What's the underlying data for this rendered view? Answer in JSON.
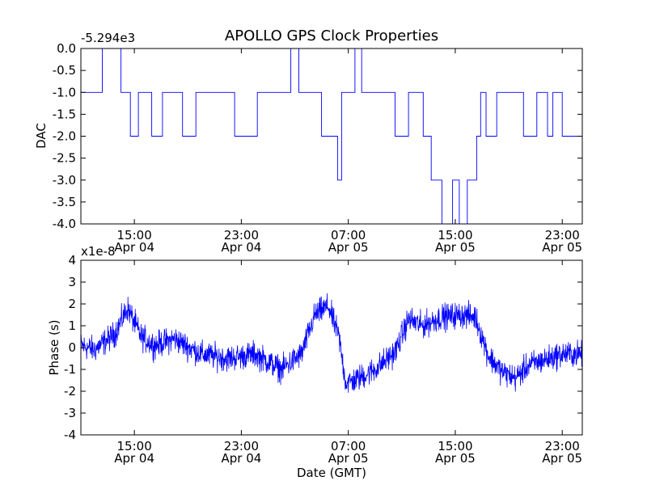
{
  "figure": {
    "title": "APOLLO GPS Clock Properties",
    "xlabel": "Date (GMT)"
  },
  "colors": {
    "line": "#0000ff",
    "axes": "#000000",
    "background": "#ffffff"
  },
  "chart_data": [
    {
      "type": "line",
      "title": "APOLLO GPS Clock Properties",
      "ylabel": "DAC",
      "offset_label": "-5.294e3",
      "xlabel": "",
      "grid": false,
      "xlim": [
        "Apr 04 11:00",
        "Apr 06 00:30"
      ],
      "ylim": [
        -4.0,
        0.0
      ],
      "yticks": [
        0.0,
        -0.5,
        -1.0,
        -1.5,
        -2.0,
        -2.5,
        -3.0,
        -3.5,
        -4.0
      ],
      "ytick_labels": [
        "0.0",
        "-0.5",
        "-1.0",
        "-1.5",
        "-2.0",
        "-2.5",
        "-3.0",
        "-3.5",
        "-4.0"
      ],
      "xticks": [
        {
          "time": "15:00",
          "date": "Apr 04"
        },
        {
          "time": "23:00",
          "date": "Apr 04"
        },
        {
          "time": "07:00",
          "date": "Apr 05"
        },
        {
          "time": "15:00",
          "date": "Apr 05"
        },
        {
          "time": "23:00",
          "date": "Apr 05"
        }
      ],
      "series": [
        {
          "hours": [
            11.8,
            12.6,
            14.0,
            14.7,
            15.3,
            16.3,
            17.1,
            18.6,
            19.6,
            22.5,
            24.2,
            26.2,
            26.7,
            27.3,
            29.0,
            30.2,
            30.5,
            31.5,
            32.0,
            34.5,
            35.5,
            36.6,
            37.2,
            38.0,
            38.8,
            39.3,
            39.9,
            40.6,
            40.9,
            41.3,
            42.1,
            44.1,
            45.1,
            45.9,
            46.3,
            47.0
          ],
          "values": [
            -1,
            0,
            -1,
            -2,
            -1,
            -2,
            -1,
            -2,
            -1,
            -2,
            -1,
            -1,
            0,
            -1,
            -2,
            -3,
            -1,
            0,
            -1,
            -2,
            -1,
            -2,
            -3,
            -4,
            -3,
            -4,
            -3,
            -2,
            -1,
            -2,
            -1,
            -2,
            -1,
            -2,
            -1,
            -2
          ]
        }
      ]
    },
    {
      "type": "line",
      "ylabel": "Phase (s)",
      "xlabel": "Date (GMT)",
      "offset_label": "x1e-8",
      "grid": false,
      "xlim": [
        "Apr 04 11:00",
        "Apr 06 00:30"
      ],
      "ylim": [
        -4,
        4
      ],
      "yticks": [
        4,
        3,
        2,
        1,
        0,
        -1,
        -2,
        -3,
        -4
      ],
      "ytick_labels": [
        "4",
        "3",
        "2",
        "1",
        "0",
        "-1",
        "-2",
        "-3",
        "-4"
      ],
      "xticks": [
        {
          "time": "15:00",
          "date": "Apr 04"
        },
        {
          "time": "23:00",
          "date": "Apr 04"
        },
        {
          "time": "07:00",
          "date": "Apr 05"
        },
        {
          "time": "15:00",
          "date": "Apr 05"
        },
        {
          "time": "23:00",
          "date": "Apr 05"
        }
      ],
      "series": [
        {
          "hours": [
            11.0,
            12.0,
            13.5,
            14.5,
            15.5,
            16.5,
            18.0,
            20.0,
            22.0,
            24.0,
            26.0,
            27.5,
            28.5,
            29.5,
            30.3,
            30.8,
            31.5,
            33.0,
            34.5,
            35.5,
            36.5,
            38.0,
            39.5,
            40.5,
            41.5,
            42.5,
            43.5,
            44.5,
            46.0,
            47.0
          ],
          "values": [
            0.1,
            -0.1,
            0.6,
            1.8,
            0.5,
            0.1,
            0.4,
            -0.3,
            -0.5,
            -0.3,
            -1.0,
            -0.3,
            1.5,
            1.9,
            0.5,
            -1.6,
            -1.5,
            -1.0,
            -0.2,
            1.3,
            1.0,
            1.4,
            1.5,
            1.4,
            -0.4,
            -1.1,
            -1.4,
            -0.8,
            -0.5,
            -0.3
          ],
          "noise_amplitude": 0.45
        }
      ]
    }
  ]
}
